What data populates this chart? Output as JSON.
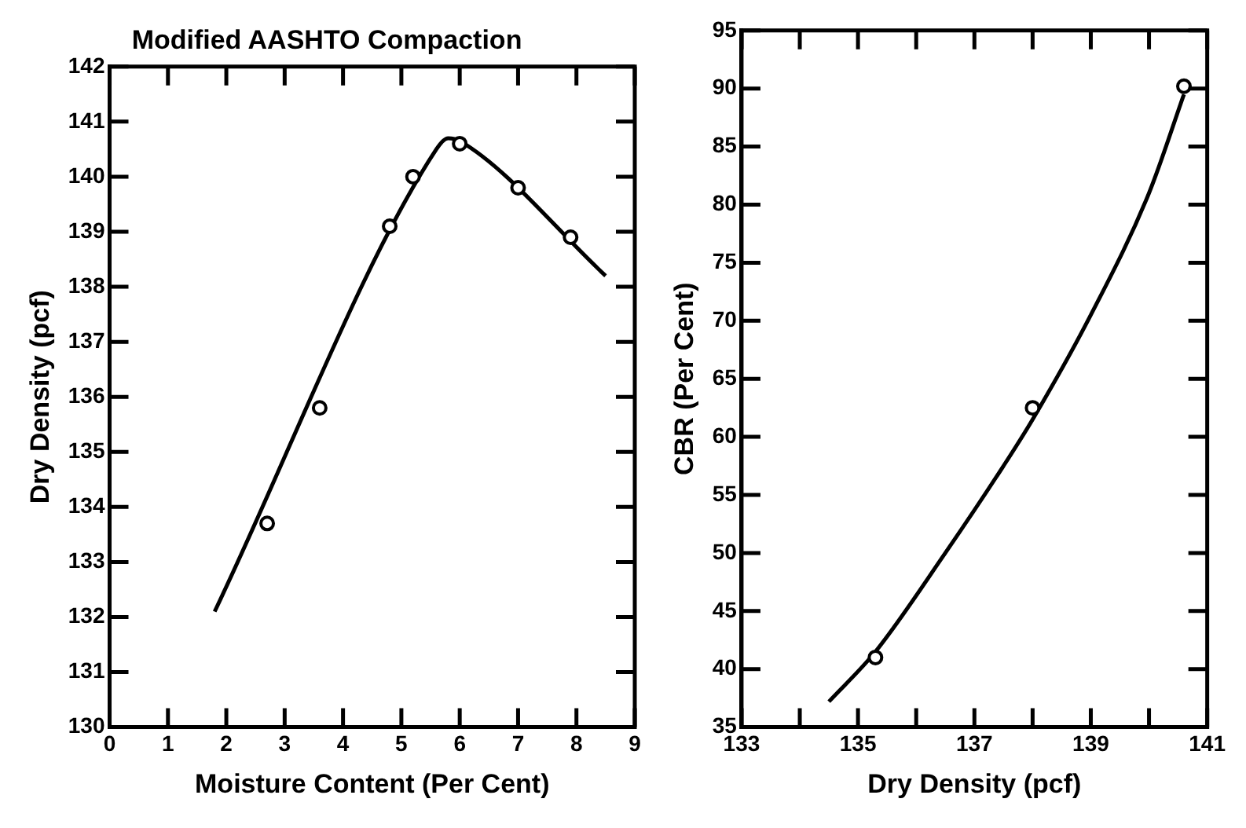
{
  "chart_data": [
    {
      "type": "scatter",
      "title": "Modified AASHTO Compaction",
      "xlabel": "Moisture Content (Per Cent)",
      "ylabel": "Dry Density (pcf)",
      "xlim": [
        0,
        9
      ],
      "xticks": [
        0,
        1,
        2,
        3,
        4,
        5,
        6,
        7,
        8,
        9
      ],
      "ylim": [
        130,
        142
      ],
      "yticks": [
        130,
        131,
        132,
        133,
        134,
        135,
        136,
        137,
        138,
        139,
        140,
        141,
        142
      ],
      "grid": false,
      "legend": false,
      "series": [
        {
          "color": "#000000",
          "marker": "circle",
          "x": [
            2.7,
            3.6,
            4.8,
            5.2,
            6.0,
            7.0,
            7.9
          ],
          "values": [
            133.7,
            135.8,
            139.1,
            140.0,
            140.6,
            139.8,
            138.9
          ]
        },
        {
          "type": "line",
          "color": "#000000",
          "marker": "none",
          "x": [
            1.8,
            5.6,
            5.8,
            6.0,
            8.5
          ],
          "values": [
            132.1,
            140.5,
            140.7,
            140.65,
            138.2
          ]
        }
      ]
    },
    {
      "type": "scatter",
      "xlabel": "Dry Density (pcf)",
      "ylabel": "CBR (Per Cent)",
      "xlim": [
        133,
        141
      ],
      "xticks": [
        133,
        {
          "value": 134,
          "label": null
        },
        135,
        {
          "value": 136,
          "label": null
        },
        137,
        {
          "value": 138,
          "label": null
        },
        139,
        {
          "value": 140,
          "label": null
        },
        141
      ],
      "ylim": [
        35,
        95
      ],
      "yticks": [
        35,
        40,
        45,
        50,
        55,
        60,
        65,
        70,
        75,
        80,
        85,
        90,
        95
      ],
      "grid": false,
      "legend": false,
      "series": [
        {
          "color": "#000000",
          "marker": "circle",
          "x": [
            135.3,
            138.0,
            140.6
          ],
          "values": [
            41,
            62.5,
            90.2
          ]
        },
        {
          "type": "line",
          "color": "#000000",
          "marker": "none",
          "x": [
            134.5,
            135.3,
            136.5,
            137.5,
            138.0,
            139.0,
            140.0,
            140.6
          ],
          "values": [
            37.2,
            41.5,
            50,
            57.5,
            61.5,
            70.5,
            81,
            89.5
          ]
        }
      ]
    }
  ]
}
